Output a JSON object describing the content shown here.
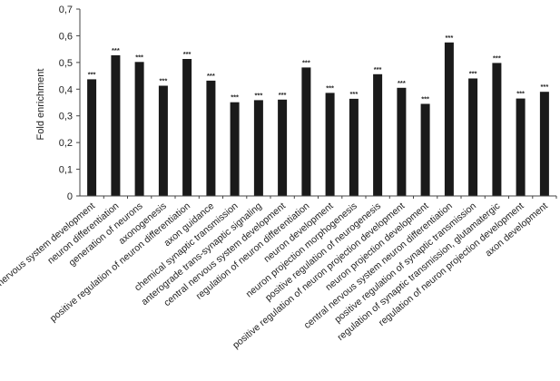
{
  "chart_data": {
    "type": "bar",
    "title": "",
    "xlabel": "",
    "ylabel": "Fold enrichment",
    "ylim": [
      0,
      0.7
    ],
    "yticks": [
      "0",
      "0,1",
      "0,2",
      "0,3",
      "0,4",
      "0,5",
      "0,6",
      "0,7"
    ],
    "grid": false,
    "bar_color": "#1a1a1a",
    "categories": [
      "nervous system development",
      "neuron differentiation",
      "generation of neurons",
      "axonogenesis",
      "positive regulation of neuron differentiation",
      "axon guidance",
      "chemical synaptic transmission",
      "anterograde trans-synaptic signaling",
      "central nervous system development",
      "regulation of neuron differentiation",
      "neuron development",
      "neuron projection morphogenesis",
      "positive regulation of neurogenesis",
      "positive regulation of neuron projection development",
      "neuron projection development",
      "central nervous system neuron differentiation",
      "positive regulation of synaptic transmission",
      "regulation of synaptic transmission, glutamatergic",
      "regulation of neuron projection development",
      "axon development"
    ],
    "values": [
      0.437,
      0.527,
      0.502,
      0.413,
      0.513,
      0.432,
      0.351,
      0.359,
      0.361,
      0.481,
      0.386,
      0.364,
      0.456,
      0.405,
      0.345,
      0.575,
      0.44,
      0.498,
      0.365,
      0.39
    ],
    "annotations": [
      "***",
      "***",
      "***",
      "***",
      "***",
      "***",
      "***",
      "***",
      "***",
      "***",
      "***",
      "***",
      "***",
      "***",
      "***",
      "***",
      "***",
      "***",
      "***",
      "***"
    ]
  }
}
